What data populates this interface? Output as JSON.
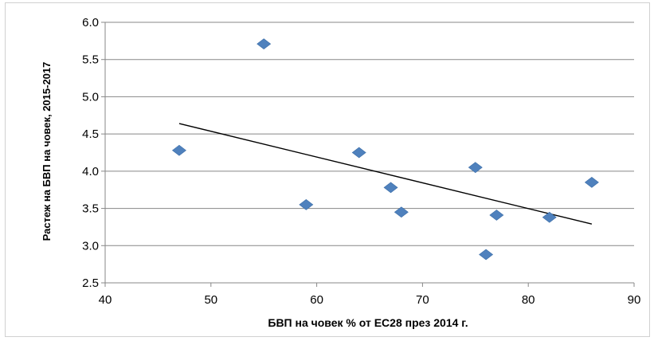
{
  "chart_data": {
    "type": "scatter",
    "title": "",
    "xlabel": "БВП на човек % от ЕС28 през 2014 г.",
    "ylabel": "Растеж на БВП на човек, 2015-2017",
    "xlim": [
      40,
      90
    ],
    "ylim": [
      2.5,
      6.0
    ],
    "xticks": [
      40,
      50,
      60,
      70,
      80,
      90
    ],
    "yticks": [
      2.5,
      3.0,
      3.5,
      4.0,
      4.5,
      5.0,
      5.5,
      6.0
    ],
    "ytick_labels": [
      "2.5",
      "3.0",
      "3.5",
      "4.0",
      "4.5",
      "5.0",
      "5.5",
      "6.0"
    ],
    "grid": "horizontal",
    "legend": "none",
    "marker": "diamond",
    "marker_color": "#4f81bd",
    "trendline_color": "#000000",
    "series": [
      {
        "points": [
          {
            "x": 47,
            "y": 4.28
          },
          {
            "x": 55,
            "y": 5.71
          },
          {
            "x": 59,
            "y": 3.55
          },
          {
            "x": 64,
            "y": 4.25
          },
          {
            "x": 67,
            "y": 3.78
          },
          {
            "x": 68,
            "y": 3.45
          },
          {
            "x": 75,
            "y": 4.05
          },
          {
            "x": 76,
            "y": 2.88
          },
          {
            "x": 77,
            "y": 3.41
          },
          {
            "x": 82,
            "y": 3.38
          },
          {
            "x": 86,
            "y": 3.85
          }
        ]
      }
    ],
    "trendline": {
      "x": [
        47,
        86
      ],
      "y": [
        4.64,
        3.29
      ]
    }
  }
}
